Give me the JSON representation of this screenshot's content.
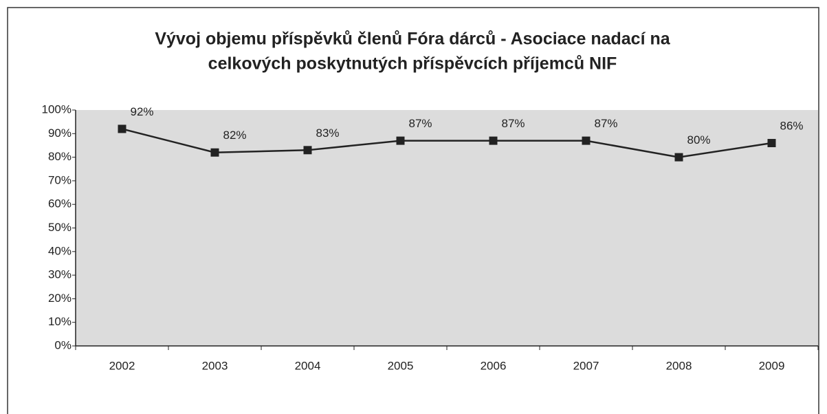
{
  "chart_data": {
    "type": "line",
    "title": [
      "Vývoj objemu příspěvků členů Fóra dárců - Asociace nadací na",
      "celkových poskytnutých příspěvcích příjemců NIF"
    ],
    "categories": [
      "2002",
      "2003",
      "2004",
      "2005",
      "2006",
      "2007",
      "2008",
      "2009"
    ],
    "series": [
      {
        "color": "#222222",
        "values": [
          92,
          82,
          83,
          87,
          87,
          87,
          80,
          86
        ],
        "value_labels": [
          "92%",
          "82%",
          "83%",
          "87%",
          "87%",
          "87%",
          "80%",
          "86%"
        ]
      }
    ],
    "ylim": [
      0,
      100
    ],
    "yticks": [
      {
        "value": 0,
        "label": "0%"
      },
      {
        "value": 10,
        "label": "10%"
      },
      {
        "value": 20,
        "label": "20%"
      },
      {
        "value": 30,
        "label": "30%"
      },
      {
        "value": 40,
        "label": "40%"
      },
      {
        "value": 50,
        "label": "50%"
      },
      {
        "value": 60,
        "label": "60%"
      },
      {
        "value": 70,
        "label": "70%"
      },
      {
        "value": 80,
        "label": "80%"
      },
      {
        "value": 90,
        "label": "90%"
      },
      {
        "value": 100,
        "label": "100%"
      }
    ],
    "grid": false,
    "plot_background": "#dcdcdc"
  }
}
